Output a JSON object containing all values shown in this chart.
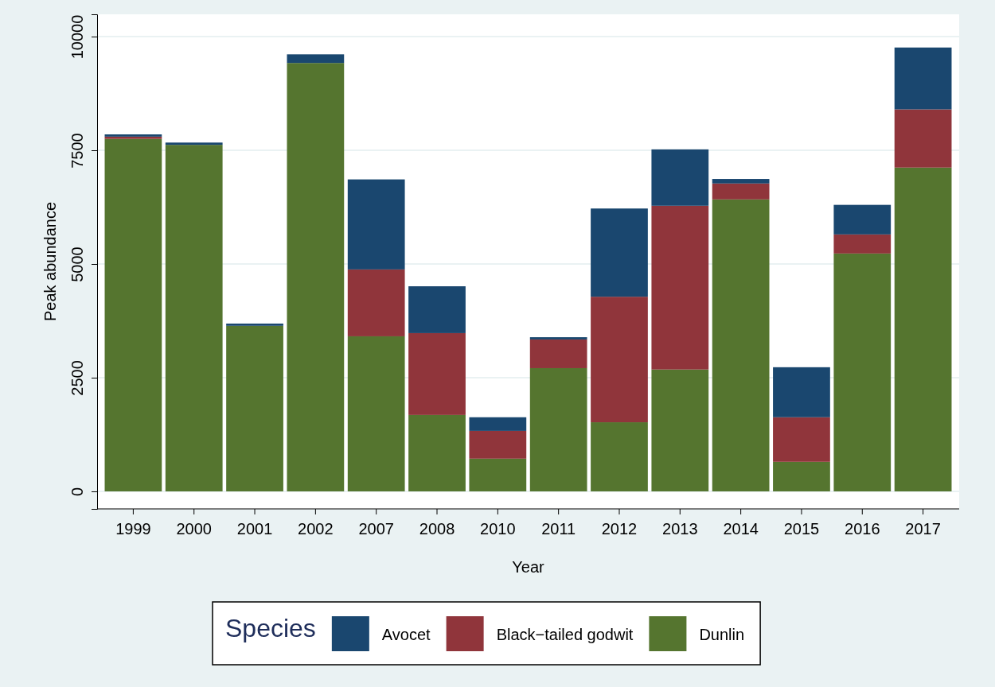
{
  "chart_data": {
    "type": "bar",
    "stacked": true,
    "xlabel": "Year",
    "ylabel": "Peak abundance",
    "legend_title": "Species",
    "legend": "bottom",
    "grid": "y",
    "categories": [
      "1999",
      "2000",
      "2001",
      "2002",
      "2007",
      "2008",
      "2010",
      "2011",
      "2012",
      "2013",
      "2014",
      "2015",
      "2016",
      "2017"
    ],
    "ylim": [
      -385,
      10490
    ],
    "yticks": [
      0,
      2500,
      5000,
      7500,
      10000
    ],
    "series": [
      {
        "name": "Dunlin",
        "color": "#55752f",
        "values": [
          7750,
          7620,
          3640,
          9420,
          3410,
          1680,
          720,
          2710,
          1520,
          2680,
          6420,
          650,
          5230,
          7120
        ]
      },
      {
        "name": "Black−tailed godwit",
        "color": "#90353b",
        "values": [
          50,
          0,
          0,
          0,
          1470,
          1800,
          610,
          630,
          2760,
          3600,
          350,
          980,
          420,
          1280
        ]
      },
      {
        "name": "Avocet",
        "color": "#1a476f",
        "values": [
          50,
          50,
          50,
          190,
          1980,
          1030,
          300,
          50,
          1940,
          1240,
          100,
          1100,
          650,
          1360
        ]
      }
    ]
  }
}
